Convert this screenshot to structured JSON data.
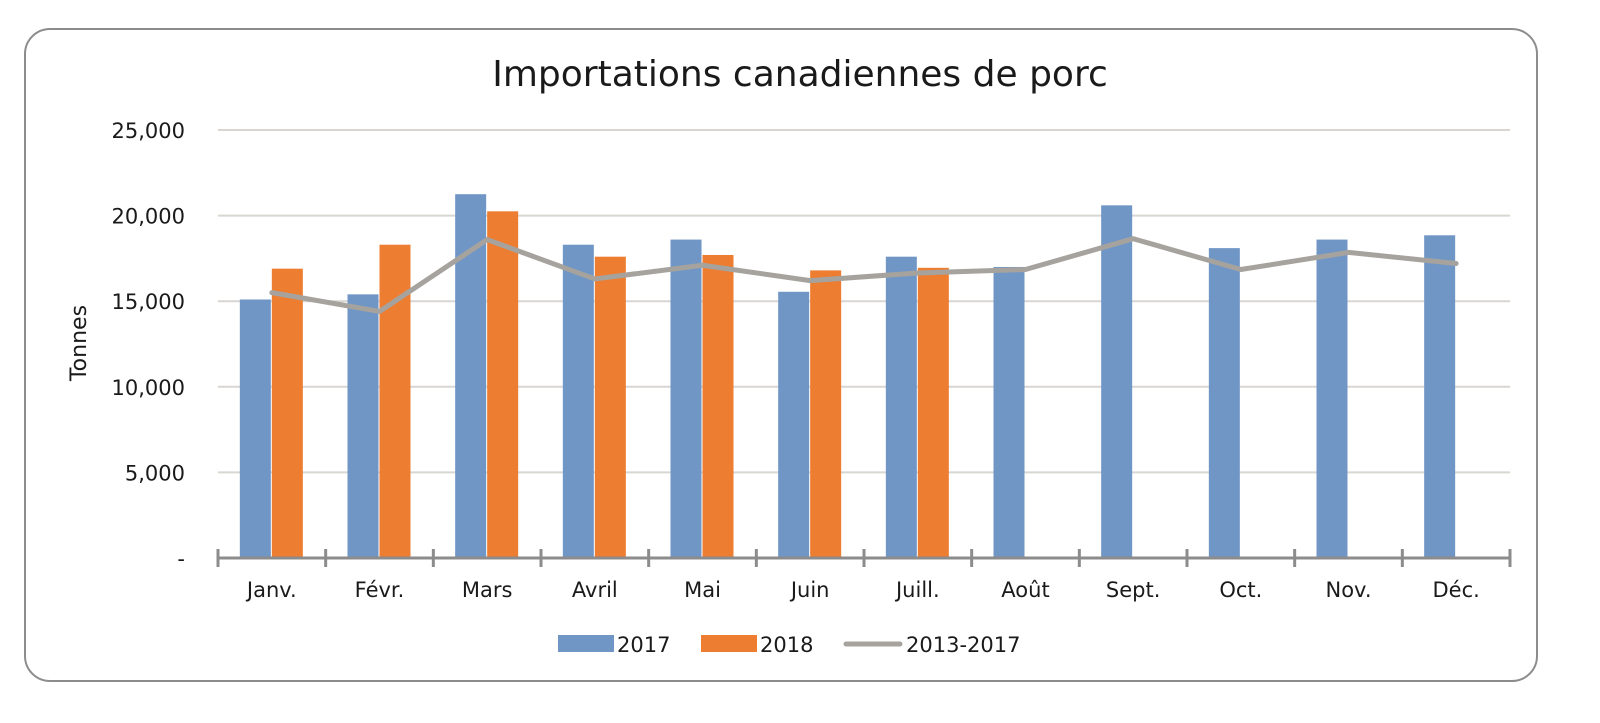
{
  "chart_data": {
    "type": "bar",
    "title": "Importations canadiennes de porc",
    "xlabel": "",
    "ylabel": "Tonnes",
    "ylim": [
      0,
      25000
    ],
    "yticks": [
      0,
      5000,
      10000,
      15000,
      20000,
      25000
    ],
    "ytick_labels": [
      "-",
      "5,000",
      "10,000",
      "15,000",
      "20,000",
      "25,000"
    ],
    "grid": true,
    "legend_position": "bottom",
    "categories": [
      "Janv.",
      "Févr.",
      "Mars",
      "Avril",
      "Mai",
      "Juin",
      "Juill.",
      "Août",
      "Sept.",
      "Oct.",
      "Nov.",
      "Déc."
    ],
    "series": [
      {
        "name": "2017",
        "type": "bar",
        "color": "#7096c6",
        "values": [
          15100,
          15400,
          21250,
          18300,
          18600,
          15550,
          17600,
          17000,
          20600,
          18100,
          18600,
          18850
        ]
      },
      {
        "name": "2018",
        "type": "bar",
        "color": "#ed7d31",
        "values": [
          16900,
          18300,
          20250,
          17600,
          17700,
          16800,
          16950,
          null,
          null,
          null,
          null,
          null
        ]
      },
      {
        "name": "2013-2017",
        "type": "line",
        "color": "#a6a39e",
        "values": [
          15500,
          14400,
          18600,
          16300,
          17100,
          16200,
          16650,
          16850,
          18650,
          16850,
          17850,
          17200
        ]
      }
    ]
  }
}
